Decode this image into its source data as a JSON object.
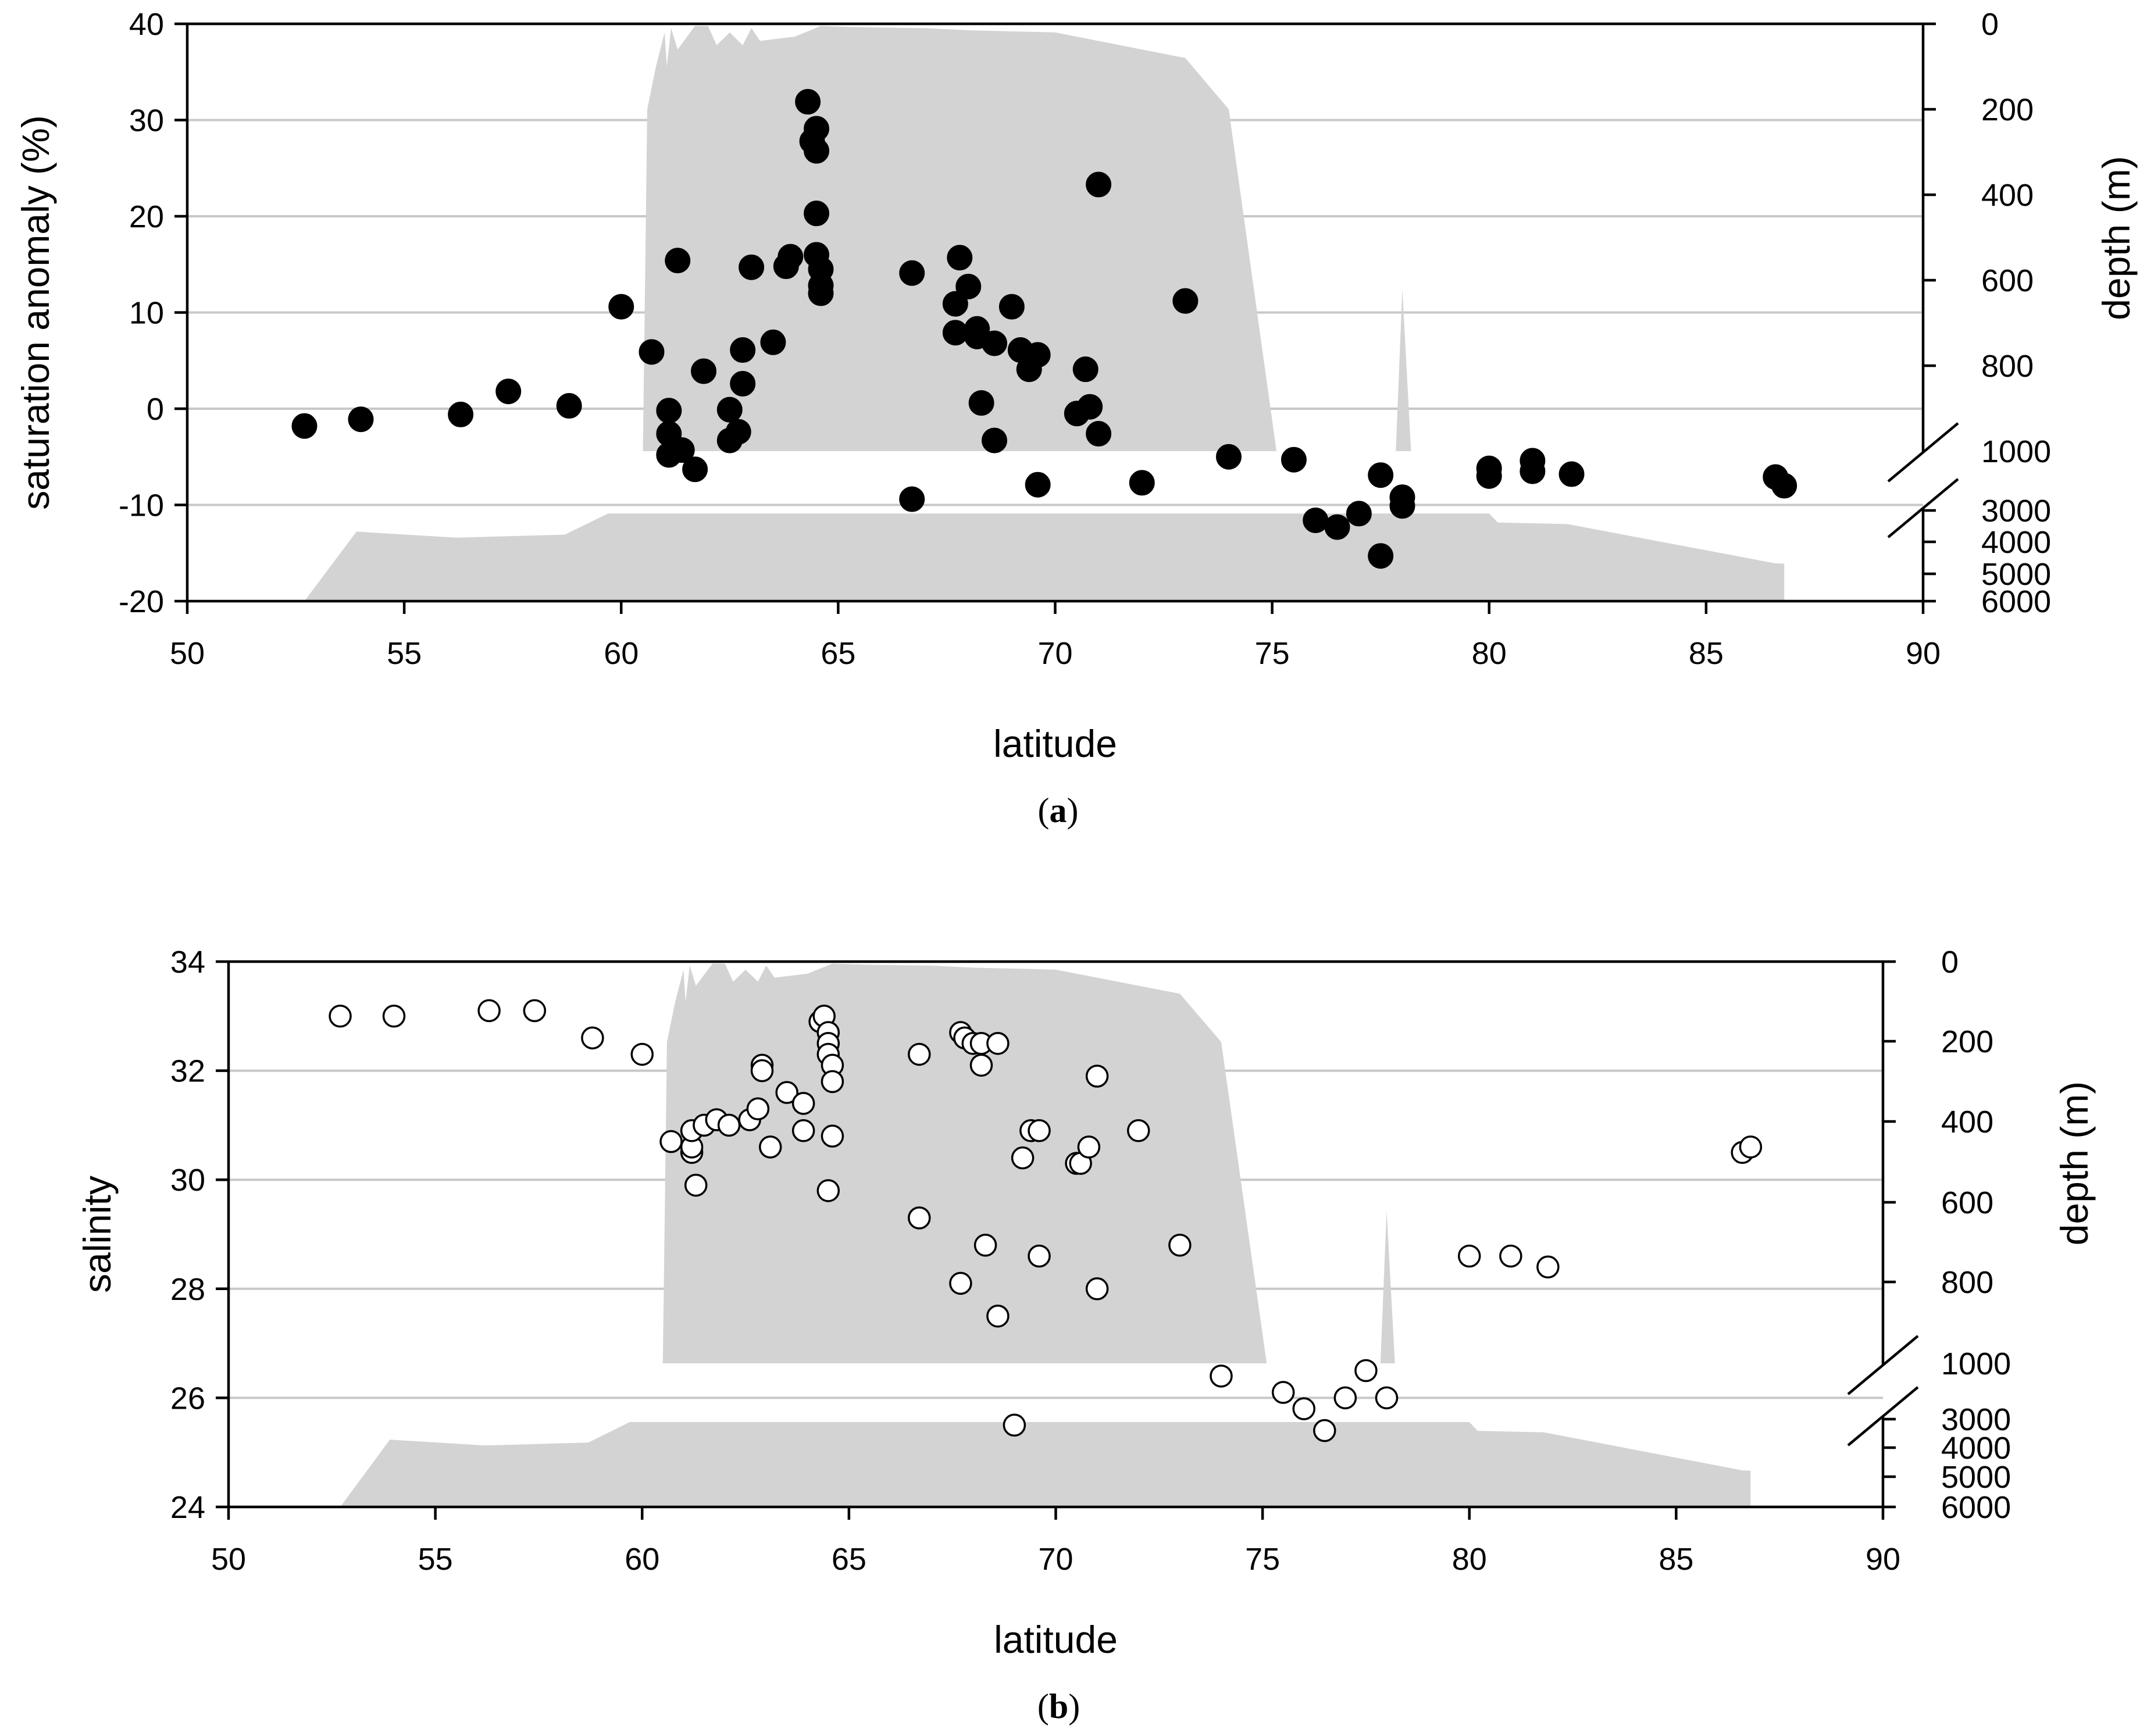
{
  "chart_data": [
    {
      "type": "scatter",
      "panel_label": "a",
      "xlabel": "latitude",
      "ylabel": "saturation anomaly (%)",
      "y2label": "depth (m)",
      "xlim": [
        50,
        90
      ],
      "ylim": [
        -20,
        40
      ],
      "xticks": [
        50,
        55,
        60,
        65,
        70,
        75,
        80,
        85,
        90
      ],
      "yticks": [
        -20,
        -10,
        0,
        10,
        20,
        30,
        40
      ],
      "y2ticks_upper": [
        0,
        200,
        400,
        600,
        800,
        1000
      ],
      "y2ticks_lower": [
        3000,
        4000,
        5000,
        6000
      ],
      "marker": "filled",
      "points": [
        [
          52.7,
          -1.8
        ],
        [
          54.0,
          -1.1
        ],
        [
          56.3,
          -0.6
        ],
        [
          57.4,
          1.8
        ],
        [
          58.8,
          0.3
        ],
        [
          60.0,
          10.6
        ],
        [
          60.7,
          5.9
        ],
        [
          61.1,
          -0.2
        ],
        [
          61.1,
          -2.6
        ],
        [
          61.1,
          -4.8
        ],
        [
          61.3,
          15.4
        ],
        [
          61.4,
          -4.3
        ],
        [
          61.7,
          -6.3
        ],
        [
          61.9,
          3.9
        ],
        [
          62.5,
          -0.1
        ],
        [
          62.5,
          -3.3
        ],
        [
          62.7,
          -2.4
        ],
        [
          62.8,
          6.1
        ],
        [
          62.8,
          2.6
        ],
        [
          63.0,
          14.7
        ],
        [
          63.5,
          6.9
        ],
        [
          63.8,
          14.8
        ],
        [
          63.9,
          15.8
        ],
        [
          64.3,
          31.9
        ],
        [
          64.4,
          27.8
        ],
        [
          64.5,
          29.1
        ],
        [
          64.5,
          26.8
        ],
        [
          64.5,
          20.3
        ],
        [
          64.5,
          16.0
        ],
        [
          64.6,
          14.5
        ],
        [
          64.6,
          12.8
        ],
        [
          64.6,
          12.0
        ],
        [
          66.7,
          14.1
        ],
        [
          66.7,
          -9.4
        ],
        [
          67.7,
          10.9
        ],
        [
          67.7,
          7.9
        ],
        [
          67.8,
          15.7
        ],
        [
          68.0,
          12.7
        ],
        [
          68.2,
          8.3
        ],
        [
          68.2,
          7.5
        ],
        [
          68.3,
          0.6
        ],
        [
          68.6,
          6.8
        ],
        [
          68.6,
          -3.3
        ],
        [
          69.0,
          10.6
        ],
        [
          69.2,
          6.1
        ],
        [
          69.4,
          4.1
        ],
        [
          69.6,
          5.6
        ],
        [
          69.6,
          -7.9
        ],
        [
          70.5,
          -0.5
        ],
        [
          70.7,
          4.1
        ],
        [
          70.8,
          0.2
        ],
        [
          71.0,
          23.3
        ],
        [
          71.0,
          -2.6
        ],
        [
          72.0,
          -7.7
        ],
        [
          73.0,
          11.2
        ],
        [
          74.0,
          -5.0
        ],
        [
          75.5,
          -5.3
        ],
        [
          76.0,
          -11.6
        ],
        [
          76.5,
          -12.3
        ],
        [
          77.0,
          -10.9
        ],
        [
          77.5,
          -15.3
        ],
        [
          77.5,
          -6.9
        ],
        [
          78.0,
          -9.2
        ],
        [
          78.0,
          -10.1
        ],
        [
          80.0,
          -6.2
        ],
        [
          80.0,
          -7.0
        ],
        [
          81.0,
          -5.4
        ],
        [
          81.0,
          -6.5
        ],
        [
          81.9,
          -6.8
        ],
        [
          86.6,
          -7.1
        ],
        [
          86.8,
          -8.0
        ]
      ]
    },
    {
      "type": "scatter",
      "panel_label": "b",
      "xlabel": "latitude",
      "ylabel": "salinity",
      "y2label": "depth (m)",
      "xlim": [
        50,
        90
      ],
      "ylim": [
        24,
        34
      ],
      "xticks": [
        50,
        55,
        60,
        65,
        70,
        75,
        80,
        85,
        90
      ],
      "yticks": [
        24,
        26,
        28,
        30,
        32,
        34
      ],
      "y2ticks_upper": [
        0,
        200,
        400,
        600,
        800,
        1000
      ],
      "y2ticks_lower": [
        3000,
        4000,
        5000,
        6000
      ],
      "marker": "open",
      "points": [
        [
          52.7,
          33.0
        ],
        [
          54.0,
          33.0
        ],
        [
          56.3,
          33.1
        ],
        [
          57.4,
          33.1
        ],
        [
          58.8,
          32.6
        ],
        [
          60.0,
          32.3
        ],
        [
          60.7,
          30.7
        ],
        [
          61.2,
          30.5
        ],
        [
          61.2,
          30.6
        ],
        [
          61.2,
          30.9
        ],
        [
          61.3,
          29.9
        ],
        [
          61.5,
          31.0
        ],
        [
          61.8,
          31.1
        ],
        [
          62.1,
          31.0
        ],
        [
          62.6,
          31.1
        ],
        [
          62.8,
          31.3
        ],
        [
          62.9,
          32.1
        ],
        [
          62.9,
          32.0
        ],
        [
          63.1,
          30.6
        ],
        [
          63.5,
          31.6
        ],
        [
          63.9,
          30.9
        ],
        [
          63.9,
          31.4
        ],
        [
          64.3,
          32.9
        ],
        [
          64.4,
          33.0
        ],
        [
          64.5,
          32.7
        ],
        [
          64.5,
          32.5
        ],
        [
          64.5,
          32.3
        ],
        [
          64.5,
          29.8
        ],
        [
          64.6,
          32.1
        ],
        [
          64.6,
          31.8
        ],
        [
          64.6,
          30.8
        ],
        [
          66.7,
          32.3
        ],
        [
          66.7,
          29.3
        ],
        [
          67.7,
          32.7
        ],
        [
          67.8,
          32.6
        ],
        [
          67.7,
          28.1
        ],
        [
          68.0,
          32.5
        ],
        [
          68.2,
          32.5
        ],
        [
          68.2,
          32.1
        ],
        [
          68.3,
          28.8
        ],
        [
          68.6,
          32.5
        ],
        [
          68.6,
          27.5
        ],
        [
          69.0,
          25.5
        ],
        [
          69.2,
          30.4
        ],
        [
          69.4,
          30.9
        ],
        [
          69.6,
          30.9
        ],
        [
          69.6,
          28.6
        ],
        [
          70.5,
          30.3
        ],
        [
          70.6,
          30.3
        ],
        [
          70.8,
          30.6
        ],
        [
          71.0,
          31.9
        ],
        [
          71.0,
          28.0
        ],
        [
          72.0,
          30.9
        ],
        [
          73.0,
          28.8
        ],
        [
          74.0,
          26.4
        ],
        [
          75.5,
          26.1
        ],
        [
          76.0,
          25.8
        ],
        [
          76.5,
          25.4
        ],
        [
          77.0,
          26.0
        ],
        [
          77.5,
          26.5
        ],
        [
          78.0,
          26.0
        ],
        [
          80.0,
          28.6
        ],
        [
          81.0,
          28.6
        ],
        [
          81.9,
          28.4
        ],
        [
          86.6,
          30.5
        ],
        [
          86.8,
          30.6
        ]
      ]
    }
  ]
}
